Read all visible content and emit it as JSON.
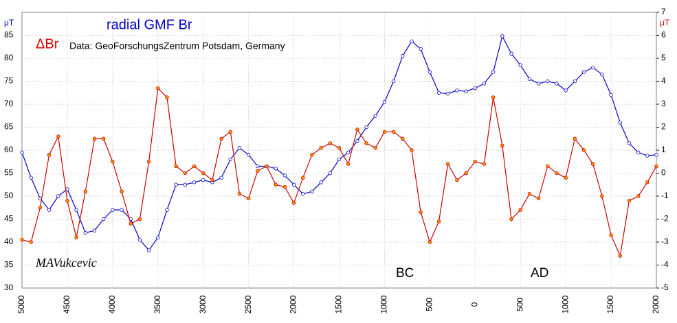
{
  "chart_data": {
    "type": "line",
    "title": "radial GMF Br",
    "subtitle": "ΔBr",
    "source": "Data: GeoForschungsZentrum Potsdam, Germany",
    "annotations": [
      "MAVukcevic",
      "BC",
      "AD"
    ],
    "ylabel": "μT",
    "y2label": "μT",
    "x": [
      -5000,
      -4900,
      -4800,
      -4700,
      -4600,
      -4500,
      -4400,
      -4300,
      -4200,
      -4100,
      -4000,
      -3900,
      -3800,
      -3700,
      -3600,
      -3500,
      -3400,
      -3300,
      -3200,
      -3100,
      -3000,
      -2900,
      -2800,
      -2700,
      -2600,
      -2500,
      -2400,
      -2300,
      -2200,
      -2100,
      -2000,
      -1900,
      -1800,
      -1700,
      -1600,
      -1500,
      -1400,
      -1300,
      -1200,
      -1100,
      -1000,
      -900,
      -800,
      -700,
      -600,
      -500,
      -400,
      -300,
      -200,
      -100,
      0,
      100,
      200,
      300,
      400,
      500,
      600,
      700,
      800,
      900,
      1000,
      1100,
      1200,
      1300,
      1400,
      1500,
      1600,
      1700,
      1800,
      1900,
      2000
    ],
    "xlim": [
      -5000,
      2000
    ],
    "xticks": [
      {
        "value": -5000,
        "label": "5000"
      },
      {
        "value": -4500,
        "label": "4500"
      },
      {
        "value": -4000,
        "label": "4000"
      },
      {
        "value": -3500,
        "label": "3500"
      },
      {
        "value": -3000,
        "label": "3000"
      },
      {
        "value": -2500,
        "label": "2500"
      },
      {
        "value": -2000,
        "label": "2000"
      },
      {
        "value": -1500,
        "label": "1500"
      },
      {
        "value": -1000,
        "label": "1000"
      },
      {
        "value": -500,
        "label": "500"
      },
      0,
      500,
      1000,
      1500,
      2000
    ],
    "ylim": [
      30,
      90
    ],
    "yticks": [
      30,
      35,
      40,
      45,
      50,
      55,
      60,
      65,
      70,
      75,
      80,
      85
    ],
    "y2lim": [
      -5,
      7
    ],
    "y2ticks": [
      -5,
      -4,
      -3,
      -2,
      -1,
      0,
      1,
      2,
      3,
      4,
      5,
      6,
      7
    ],
    "grid": true,
    "series": [
      {
        "name": "radial GMF Br",
        "color": "#0000cc",
        "marker": "#ffffff",
        "values": [
          59.5,
          54,
          49.5,
          47,
          50,
          51.5,
          47,
          42,
          42.5,
          45,
          47,
          47,
          45,
          40.5,
          38.2,
          41,
          47,
          52.5,
          52.5,
          53,
          53.5,
          53,
          54,
          58,
          60.5,
          59,
          56.5,
          56.5,
          56,
          54.5,
          52.5,
          50.5,
          51,
          53,
          55,
          58,
          59.5,
          62,
          65,
          67.5,
          70.5,
          75,
          80.5,
          83.7,
          82,
          77,
          72.5,
          72.3,
          73,
          72.8,
          73.5,
          74.5,
          77,
          84.8,
          81,
          78.5,
          75.5,
          74.5,
          75,
          74.5,
          73,
          75,
          77,
          78,
          76.5,
          72,
          66,
          61.5,
          59.5,
          58.8,
          59
        ]
      },
      {
        "name": "ΔBr",
        "color": "#cc0000",
        "marker": "#ff9900",
        "axis": "y2",
        "values": [
          -2.9,
          -3,
          -1.5,
          0.8,
          1.6,
          -1.2,
          -2.8,
          -0.8,
          1.5,
          1.5,
          0.5,
          -0.8,
          -2.2,
          -2,
          0.5,
          3.7,
          3.3,
          0.3,
          0,
          0.3,
          0,
          -0.3,
          1.5,
          1.8,
          -0.9,
          -1.1,
          0.1,
          0.3,
          -0.5,
          -0.6,
          -1.3,
          -0.2,
          0.8,
          1.1,
          1.3,
          1.1,
          0.4,
          1.9,
          1.3,
          1.1,
          1.8,
          1.8,
          1.5,
          1.0,
          -1.7,
          -3.0,
          -2.1,
          0.4,
          -0.3,
          0,
          0.5,
          0.4,
          3.3,
          1.2,
          -2.0,
          -1.6,
          -0.9,
          -1.1,
          0.3,
          0,
          -0.2,
          1.5,
          1.0,
          0.4,
          -1.0,
          -2.7,
          -3.6,
          -1.2,
          -1.0,
          -0.4,
          0.3
        ]
      }
    ]
  }
}
